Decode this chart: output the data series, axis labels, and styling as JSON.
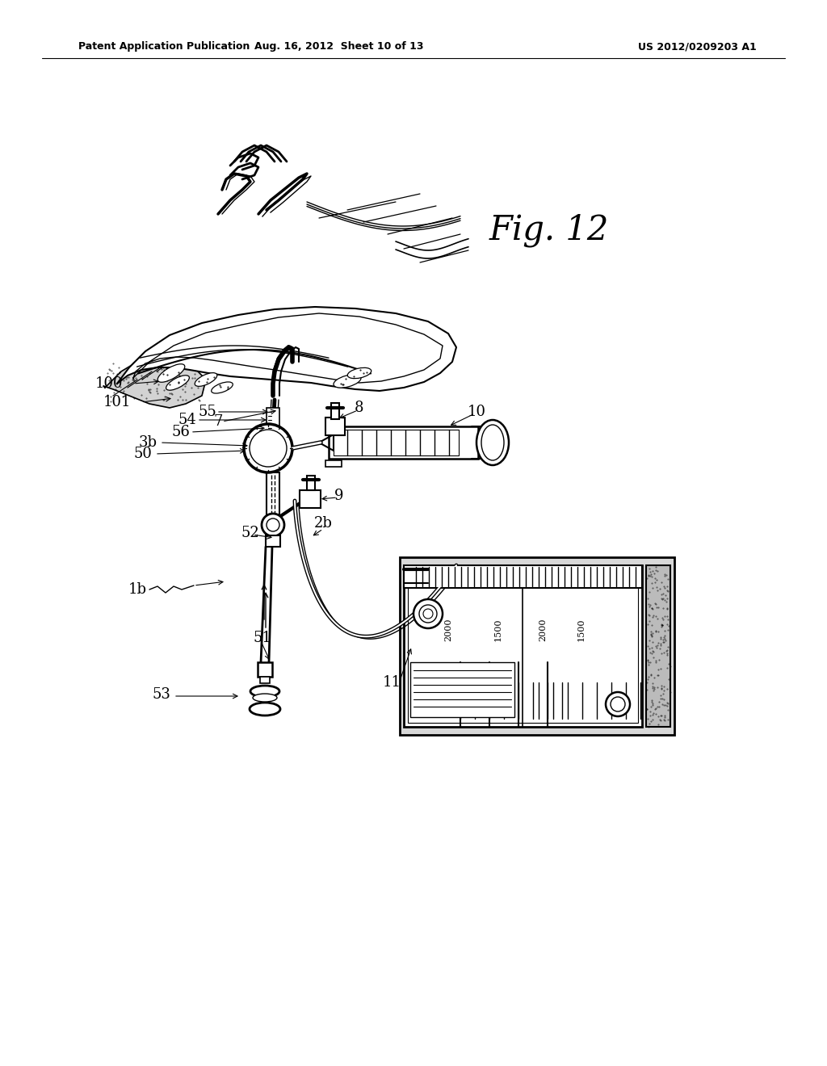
{
  "header_left": "Patent Application Publication",
  "header_mid": "Aug. 16, 2012  Sheet 10 of 13",
  "header_right": "US 2012/0209203 A1",
  "fig_label": "Fig. 12",
  "background_color": "#ffffff",
  "line_color": "#000000",
  "gray_color": "#aaaaaa",
  "dark_gray": "#888888"
}
